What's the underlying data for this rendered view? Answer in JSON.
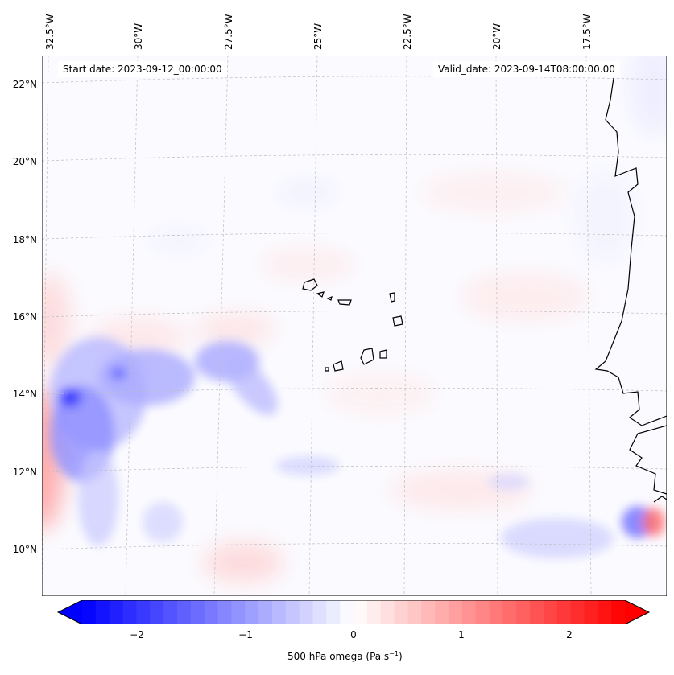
{
  "map": {
    "start_label": "Start date: 2023-09-12_00:00:00",
    "valid_label": "Valid_date: 2023-09-14T08:00:00.00",
    "lon_labels": [
      "32.5°W",
      "30°W",
      "27.5°W",
      "25°W",
      "22.5°W",
      "20°W",
      "17.5°W"
    ],
    "lat_labels": [
      "22°N",
      "20°N",
      "18°N",
      "16°N",
      "14°N",
      "12°N",
      "10°N"
    ],
    "colormap": "bwr",
    "colors": {
      "negative": "#0000ff",
      "zero": "#ffffff",
      "positive": "#ff0000",
      "coast": "#000000"
    },
    "gridlines": true
  },
  "colorbar": {
    "ticks": [
      "−2",
      "−1",
      "0",
      "1",
      "2"
    ],
    "range": [
      -2.7,
      2.7
    ],
    "label_prefix": "500 hPa omega (Pa s",
    "label_exp": "−1",
    "label_suffix": ")",
    "extend": "both"
  }
}
